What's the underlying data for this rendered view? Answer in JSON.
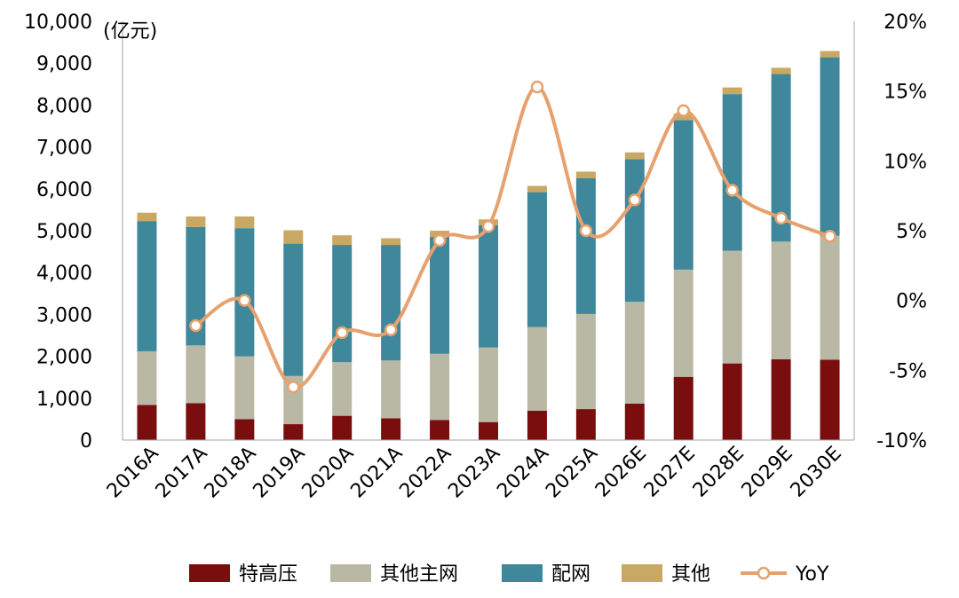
{
  "chart_data": {
    "type": "bar",
    "stacked": true,
    "unit_label": "(亿元)",
    "categories": [
      "2016A",
      "2017A",
      "2018A",
      "2019A",
      "2020A",
      "2021A",
      "2022A",
      "2023A",
      "2024A",
      "2025A",
      "2026E",
      "2027E",
      "2028E",
      "2029E",
      "2030E"
    ],
    "series": [
      {
        "name": "特高压",
        "color": "#7a0d0d",
        "values": [
          840,
          880,
          500,
          380,
          580,
          520,
          480,
          430,
          700,
          740,
          870,
          1510,
          1830,
          1930,
          1920
        ]
      },
      {
        "name": "其他主网",
        "color": "#b9b8a5",
        "values": [
          1280,
          1380,
          1500,
          1150,
          1280,
          1380,
          1580,
          1780,
          2000,
          2270,
          2430,
          2560,
          2690,
          2810,
          2960
        ]
      },
      {
        "name": "配网",
        "color": "#3f879a",
        "values": [
          3110,
          2830,
          3060,
          3160,
          2800,
          2760,
          2790,
          2920,
          3220,
          3240,
          3410,
          3570,
          3740,
          4000,
          4260
        ]
      },
      {
        "name": "其他",
        "color": "#c9a863",
        "values": [
          200,
          250,
          280,
          320,
          230,
          160,
          150,
          140,
          150,
          160,
          160,
          160,
          160,
          150,
          150
        ]
      }
    ],
    "line_series": {
      "name": "YoY",
      "color": "#e6a16e",
      "axis": "right",
      "values": [
        null,
        -1.8,
        0.0,
        -6.2,
        -2.3,
        -2.1,
        4.3,
        5.3,
        15.3,
        5.0,
        7.2,
        13.6,
        7.9,
        5.9,
        4.6
      ]
    },
    "y_left": {
      "min": 0,
      "max": 10000,
      "step": 1000,
      "ticks": [
        "0",
        "1,000",
        "2,000",
        "3,000",
        "4,000",
        "5,000",
        "6,000",
        "7,000",
        "8,000",
        "9,000",
        "10,000"
      ]
    },
    "y_right": {
      "min": -10,
      "max": 20,
      "step": 5,
      "ticks": [
        "-10%",
        "-5%",
        "0%",
        "5%",
        "10%",
        "15%",
        "20%"
      ]
    },
    "grid": false,
    "legend_position": "bottom"
  }
}
